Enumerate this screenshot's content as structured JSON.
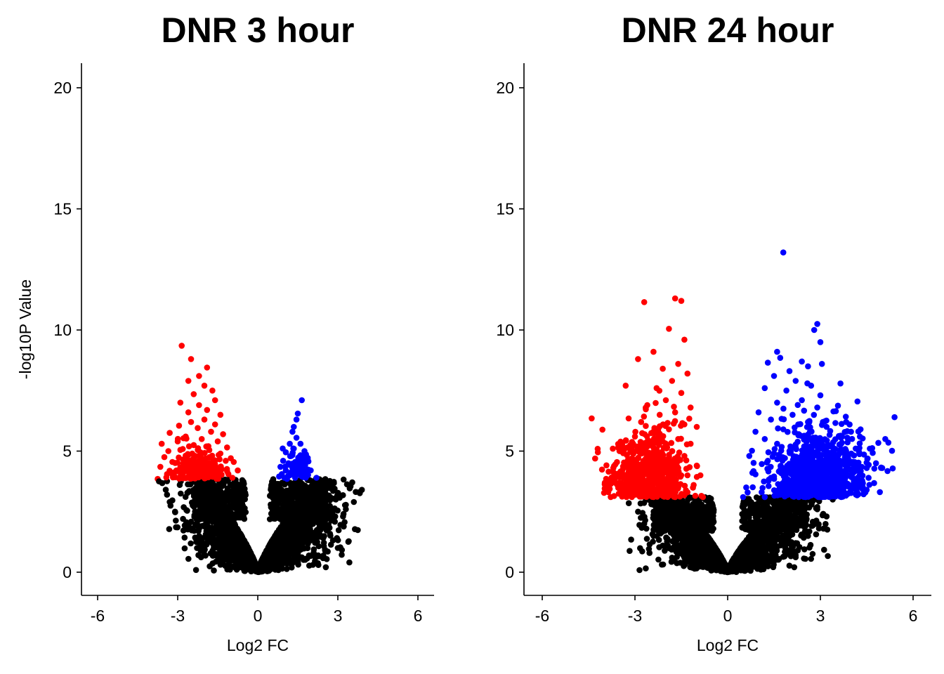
{
  "chart_data": [
    {
      "type": "scatter",
      "title": "DNR 3 hour",
      "xlabel": "Log2 FC",
      "ylabel": "-log10P Value",
      "xlim": [
        -6.6,
        6.6
      ],
      "ylim": [
        -0.9,
        21.0
      ],
      "xticks": [
        -6,
        -3,
        0,
        3,
        6
      ],
      "xtick_labels": [
        "-6",
        "-3",
        "0",
        "3",
        "6"
      ],
      "yticks": [
        0,
        5,
        10,
        15,
        20
      ],
      "ytick_labels": [
        "0",
        "5",
        "10",
        "15",
        "20"
      ],
      "significance_threshold": 3.85,
      "grid": false,
      "legend": "none",
      "colors": {
        "down": "#ff0000",
        "up": "#0000ff",
        "ns": "#000000"
      },
      "ns_envelope": {
        "neg_x_min": -3.7,
        "pos_x_max": 3.9
      },
      "series": [
        {
          "group": "down",
          "color": "#ff0000",
          "points": [
            [
              -2.85,
              9.35
            ],
            [
              -2.5,
              8.8
            ],
            [
              -1.9,
              8.45
            ],
            [
              -2.2,
              8.1
            ],
            [
              -2.6,
              7.9
            ],
            [
              -2.0,
              7.7
            ],
            [
              -1.7,
              7.5
            ],
            [
              -2.4,
              7.35
            ],
            [
              -1.6,
              7.1
            ],
            [
              -2.9,
              7.0
            ],
            [
              -2.2,
              6.9
            ],
            [
              -1.9,
              6.7
            ],
            [
              -2.6,
              6.6
            ],
            [
              -1.4,
              6.5
            ],
            [
              -2.0,
              6.3
            ],
            [
              -2.5,
              6.2
            ],
            [
              -1.6,
              6.1
            ],
            [
              -2.95,
              6.05
            ],
            [
              -2.25,
              5.95
            ],
            [
              -1.75,
              5.8
            ],
            [
              -3.3,
              5.75
            ],
            [
              -1.3,
              5.7
            ],
            [
              -2.7,
              5.6
            ],
            [
              -2.1,
              5.5
            ],
            [
              -3.0,
              5.4
            ],
            [
              -1.5,
              5.4
            ],
            [
              -3.6,
              5.3
            ],
            [
              -2.4,
              5.25
            ],
            [
              -1.85,
              5.2
            ],
            [
              -1.15,
              5.15
            ],
            [
              -2.9,
              5.05
            ],
            [
              -3.35,
              5.0
            ],
            [
              -2.15,
              4.95
            ],
            [
              -1.4,
              4.9
            ],
            [
              -2.6,
              4.85
            ],
            [
              -3.5,
              4.75
            ],
            [
              -1.95,
              4.7
            ],
            [
              -2.8,
              4.65
            ],
            [
              -1.2,
              4.6
            ],
            [
              -3.2,
              4.55
            ],
            [
              -0.9,
              4.55
            ],
            [
              -2.35,
              4.5
            ],
            [
              -1.6,
              4.45
            ],
            [
              -3.65,
              4.35
            ],
            [
              -2.7,
              4.3
            ],
            [
              -2.05,
              4.3
            ],
            [
              -1.35,
              4.25
            ],
            [
              -3.05,
              4.2
            ],
            [
              -0.75,
              4.2
            ],
            [
              -1.85,
              4.15
            ],
            [
              -2.5,
              4.1
            ],
            [
              -3.4,
              4.05
            ],
            [
              -1.1,
              4.05
            ],
            [
              -2.2,
              4.0
            ],
            [
              -2.9,
              3.95
            ],
            [
              -1.55,
              3.95
            ],
            [
              -3.75,
              3.85
            ],
            [
              -2.6,
              3.9
            ],
            [
              -1.95,
              3.9
            ],
            [
              -0.95,
              3.9
            ]
          ]
        },
        {
          "group": "up",
          "color": "#0000ff",
          "points": [
            [
              1.65,
              7.1
            ],
            [
              1.5,
              6.55
            ],
            [
              1.45,
              6.3
            ],
            [
              1.35,
              6.0
            ],
            [
              1.3,
              5.8
            ],
            [
              1.45,
              5.55
            ],
            [
              1.2,
              5.3
            ],
            [
              1.6,
              5.3
            ],
            [
              1.35,
              5.1
            ],
            [
              1.75,
              5.0
            ],
            [
              1.05,
              4.95
            ],
            [
              1.25,
              4.8
            ],
            [
              1.55,
              4.75
            ],
            [
              0.95,
              4.6
            ],
            [
              1.4,
              4.55
            ],
            [
              1.15,
              4.5
            ],
            [
              1.7,
              4.45
            ],
            [
              0.85,
              4.35
            ],
            [
              1.3,
              4.3
            ],
            [
              1.05,
              4.2
            ],
            [
              1.5,
              4.15
            ],
            [
              0.9,
              4.05
            ],
            [
              1.2,
              4.0
            ],
            [
              1.6,
              4.0
            ],
            [
              0.8,
              3.95
            ],
            [
              1.0,
              3.9
            ],
            [
              1.4,
              3.9
            ],
            [
              1.8,
              3.9
            ],
            [
              2.2,
              3.9
            ]
          ]
        },
        {
          "group": "ns",
          "color": "#000000",
          "points": [
            [
              -3.7,
              3.75
            ],
            [
              -3.4,
              3.2
            ],
            [
              -3.3,
              2.9
            ],
            [
              -3.1,
              2.5
            ],
            [
              -2.8,
              2.2
            ],
            [
              -2.6,
              1.8
            ],
            [
              -2.3,
              1.3
            ],
            [
              -2.1,
              1.0
            ],
            [
              2.5,
              2.0
            ],
            [
              2.9,
              2.3
            ],
            [
              3.3,
              2.6
            ],
            [
              3.6,
              2.9
            ],
            [
              3.8,
              3.3
            ],
            [
              3.9,
              3.4
            ],
            [
              2.4,
              3.1
            ],
            [
              2.1,
              2.7
            ]
          ]
        }
      ]
    },
    {
      "type": "scatter",
      "title": "DNR 24 hour",
      "xlabel": "Log2 FC",
      "ylabel": "",
      "xlim": [
        -6.6,
        6.6
      ],
      "ylim": [
        -0.9,
        21.0
      ],
      "xticks": [
        -6,
        -3,
        0,
        3,
        6
      ],
      "xtick_labels": [
        "-6",
        "-3",
        "0",
        "3",
        "6"
      ],
      "yticks": [
        0,
        5,
        10,
        15,
        20
      ],
      "ytick_labels": [
        "0",
        "5",
        "10",
        "15",
        "20"
      ],
      "significance_threshold": 3.1,
      "grid": false,
      "legend": "none",
      "colors": {
        "down": "#ff0000",
        "up": "#0000ff",
        "ns": "#000000"
      },
      "ns_envelope": {
        "neg_x_min": -3.2,
        "pos_x_max": 3.4
      },
      "series": [
        {
          "group": "down",
          "color": "#ff0000",
          "points": [
            [
              -2.7,
              11.15
            ],
            [
              -1.7,
              11.3
            ],
            [
              -1.5,
              11.2
            ],
            [
              -1.9,
              10.05
            ],
            [
              -1.4,
              9.6
            ],
            [
              -2.4,
              9.1
            ],
            [
              -2.9,
              8.8
            ],
            [
              -1.6,
              8.6
            ],
            [
              -2.1,
              8.4
            ],
            [
              -1.3,
              8.2
            ],
            [
              -1.8,
              7.9
            ],
            [
              -3.3,
              7.7
            ],
            [
              -2.3,
              7.6
            ],
            [
              -1.5,
              7.4
            ],
            [
              -2.0,
              7.1
            ],
            [
              -2.6,
              6.9
            ],
            [
              -1.2,
              6.8
            ],
            [
              -1.7,
              6.6
            ],
            [
              -2.2,
              6.5
            ],
            [
              -4.4,
              6.35
            ],
            [
              -2.8,
              6.2
            ],
            [
              -1.4,
              6.1
            ],
            [
              -1.0,
              6.0
            ],
            [
              -1.9,
              5.9
            ],
            [
              -2.4,
              5.8
            ],
            [
              -3.0,
              5.6
            ],
            [
              -1.6,
              5.5
            ],
            [
              -2.1,
              5.4
            ],
            [
              -1.2,
              5.3
            ],
            [
              -2.7,
              5.2
            ],
            [
              -3.5,
              5.0
            ],
            [
              -4.2,
              4.95
            ],
            [
              -1.8,
              5.0
            ],
            [
              -2.3,
              4.9
            ],
            [
              -1.4,
              4.8
            ],
            [
              -3.1,
              4.7
            ],
            [
              -2.0,
              4.6
            ],
            [
              -2.6,
              4.5
            ],
            [
              -1.0,
              4.4
            ],
            [
              -3.7,
              4.3
            ],
            [
              -1.6,
              4.3
            ],
            [
              -2.2,
              4.2
            ],
            [
              -2.9,
              4.1
            ],
            [
              -3.3,
              4.0
            ],
            [
              -1.3,
              4.0
            ],
            [
              -1.9,
              3.9
            ],
            [
              -2.5,
              3.8
            ],
            [
              -3.5,
              3.7
            ],
            [
              -1.1,
              3.6
            ],
            [
              -2.7,
              3.5
            ],
            [
              -1.6,
              3.5
            ],
            [
              -2.2,
              3.4
            ],
            [
              -3.0,
              3.3
            ],
            [
              -1.3,
              3.3
            ],
            [
              -1.9,
              3.2
            ],
            [
              -2.5,
              3.2
            ],
            [
              -0.85,
              3.15
            ],
            [
              -3.1,
              3.1
            ],
            [
              -2.4,
              3.1
            ],
            [
              -1.7,
              3.1
            ],
            [
              -0.8,
              3.1
            ]
          ]
        },
        {
          "group": "up",
          "color": "#0000ff",
          "points": [
            [
              1.8,
              13.2
            ],
            [
              2.9,
              10.25
            ],
            [
              2.8,
              10.0
            ],
            [
              3.0,
              9.5
            ],
            [
              1.6,
              9.1
            ],
            [
              1.7,
              8.85
            ],
            [
              2.4,
              8.7
            ],
            [
              1.3,
              8.65
            ],
            [
              2.6,
              8.5
            ],
            [
              3.05,
              8.6
            ],
            [
              2.0,
              8.3
            ],
            [
              1.5,
              8.1
            ],
            [
              2.2,
              7.9
            ],
            [
              2.7,
              7.7
            ],
            [
              1.2,
              7.6
            ],
            [
              1.9,
              7.5
            ],
            [
              3.0,
              7.3
            ],
            [
              2.4,
              7.1
            ],
            [
              4.2,
              7.05
            ],
            [
              1.6,
              7.0
            ],
            [
              2.9,
              6.8
            ],
            [
              3.5,
              6.65
            ],
            [
              1.0,
              6.6
            ],
            [
              2.1,
              6.5
            ],
            [
              5.4,
              6.4
            ],
            [
              1.4,
              6.3
            ],
            [
              2.6,
              6.2
            ],
            [
              3.2,
              6.0
            ],
            [
              4.3,
              5.9
            ],
            [
              1.8,
              5.9
            ],
            [
              0.9,
              5.8
            ],
            [
              2.3,
              5.7
            ],
            [
              3.7,
              5.6
            ],
            [
              5.1,
              5.5
            ],
            [
              1.2,
              5.5
            ],
            [
              2.8,
              5.4
            ],
            [
              5.2,
              5.35
            ],
            [
              4.6,
              5.1
            ],
            [
              1.6,
              5.3
            ],
            [
              3.3,
              5.2
            ],
            [
              2.0,
              5.0
            ],
            [
              4.0,
              4.9
            ],
            [
              0.7,
              4.8
            ],
            [
              2.6,
              4.7
            ],
            [
              1.3,
              4.6
            ],
            [
              4.8,
              4.5
            ],
            [
              3.0,
              4.5
            ],
            [
              5.0,
              4.3
            ],
            [
              4.5,
              4.3
            ],
            [
              1.9,
              4.3
            ],
            [
              3.8,
              4.2
            ],
            [
              0.8,
              4.1
            ],
            [
              2.4,
              4.0
            ],
            [
              4.2,
              3.9
            ],
            [
              1.4,
              3.9
            ],
            [
              3.2,
              3.8
            ],
            [
              3.9,
              3.6
            ],
            [
              2.0,
              3.6
            ],
            [
              0.6,
              3.5
            ],
            [
              2.8,
              3.4
            ],
            [
              1.1,
              3.3
            ],
            [
              3.6,
              3.2
            ],
            [
              1.7,
              3.2
            ],
            [
              2.3,
              3.1
            ],
            [
              0.5,
              3.1
            ],
            [
              1.2,
              3.1
            ],
            [
              3.0,
              3.1
            ]
          ]
        },
        {
          "group": "ns",
          "color": "#000000",
          "points": [
            [
              -3.2,
              2.85
            ],
            [
              -2.9,
              2.5
            ],
            [
              -2.7,
              2.0
            ],
            [
              -2.4,
              1.5
            ],
            [
              -2.1,
              1.1
            ],
            [
              -1.8,
              0.6
            ],
            [
              2.9,
              2.6
            ],
            [
              3.2,
              2.3
            ],
            [
              3.1,
              1.8
            ],
            [
              2.6,
              1.5
            ],
            [
              2.2,
              1.2
            ],
            [
              2.1,
              0.8
            ],
            [
              2.2,
              0.7
            ],
            [
              3.4,
              3.0
            ],
            [
              2.4,
              2.2
            ]
          ]
        }
      ]
    }
  ]
}
